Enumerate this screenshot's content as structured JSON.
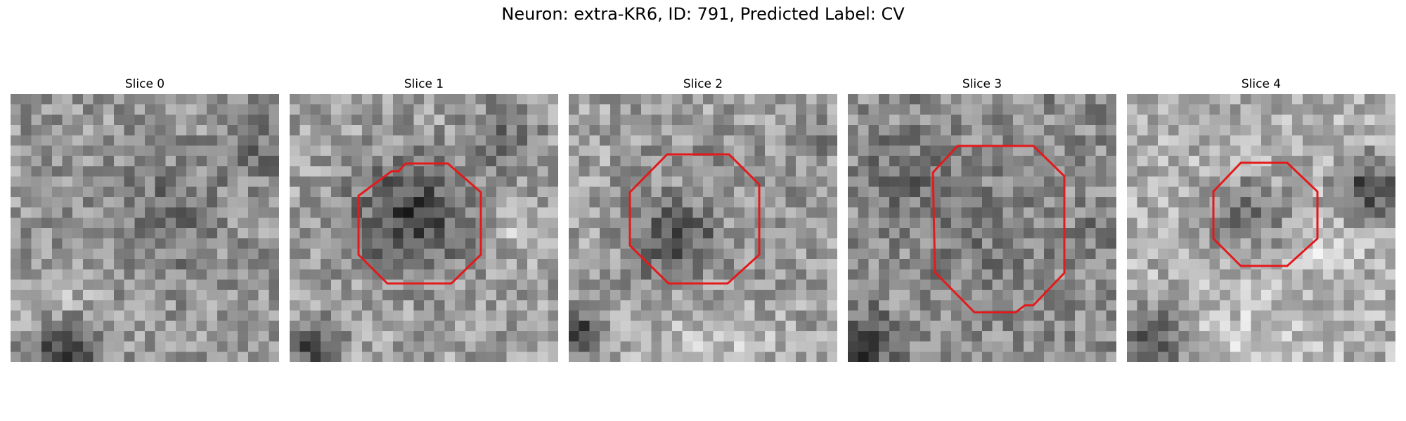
{
  "figure": {
    "suptitle": "Neuron: extra-KR6, ID: 791, Predicted Label: CV",
    "contour_color": "#e31a1c",
    "panels": [
      {
        "title": "Slice 0",
        "has_contour": false
      },
      {
        "title": "Slice 1",
        "has_contour": true
      },
      {
        "title": "Slice 2",
        "has_contour": true
      },
      {
        "title": "Slice 3",
        "has_contour": true
      },
      {
        "title": "Slice 4",
        "has_contour": true
      }
    ]
  }
}
